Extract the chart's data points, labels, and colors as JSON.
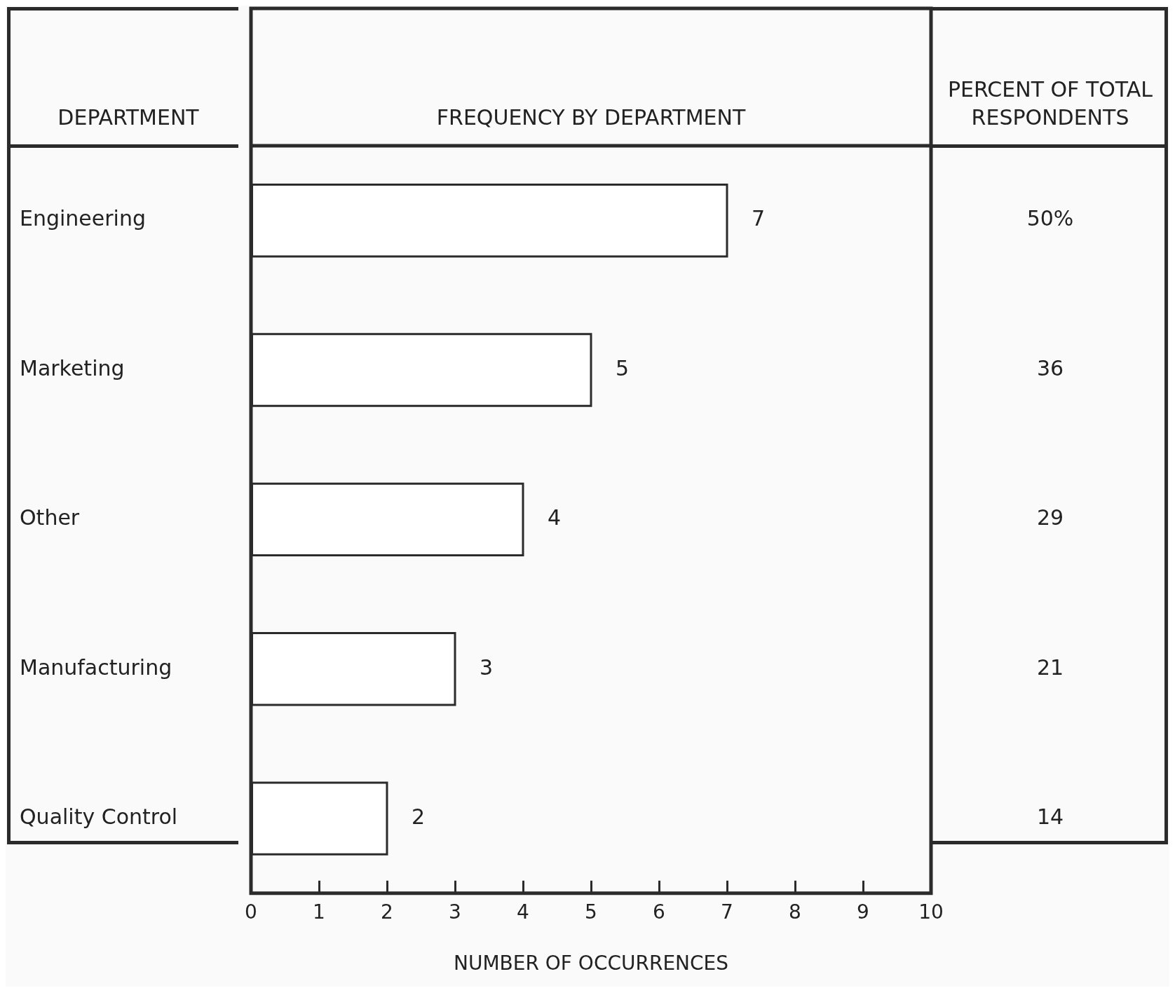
{
  "chart_data": {
    "type": "bar",
    "orientation": "horizontal",
    "title": "FREQUENCY BY DEPARTMENT",
    "ylabel": "DEPARTMENT",
    "xlabel": "NUMBER OF OCCURRENCES",
    "categories": [
      "Engineering",
      "Marketing",
      "Other",
      "Manufacturing",
      "Quality Control"
    ],
    "values": [
      7,
      5,
      4,
      3,
      2
    ],
    "color": "#2b2b2b",
    "data_labels": true,
    "xlim": [
      0,
      10
    ],
    "xticks": [
      0,
      1,
      2,
      3,
      4,
      5,
      6,
      7,
      8,
      9,
      10
    ],
    "grid": false,
    "legend": false,
    "annotations": [
      "PERCENT OF TOTAL RESPONDENTS",
      "50%",
      "36",
      "29",
      "21",
      "14"
    ]
  }
}
